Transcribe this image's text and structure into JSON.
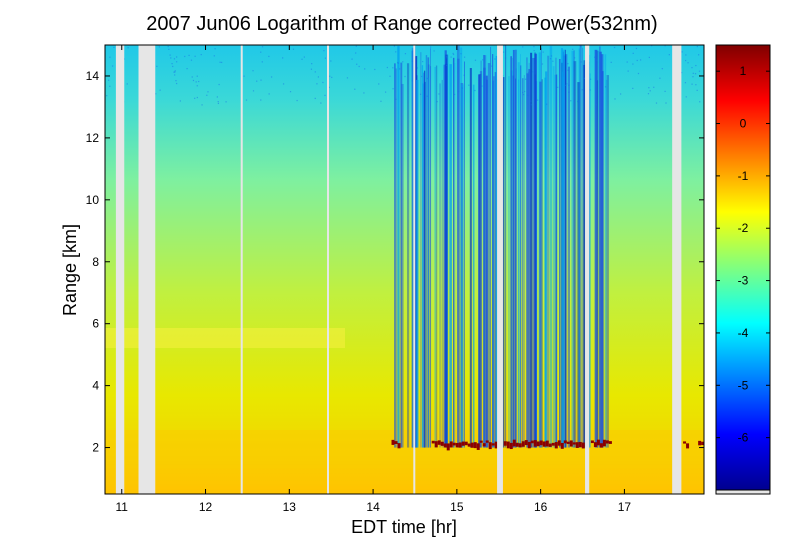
{
  "chart_data": {
    "type": "heatmap",
    "title": "2007 Jun06  Logarithm of Range corrected Power(532nm)",
    "xlabel": "EDT time [hr]",
    "ylabel": "Range [km]",
    "xlim": [
      10.8,
      17.95
    ],
    "ylim": [
      0.5,
      15
    ],
    "xticks": [
      "11",
      "12",
      "13",
      "14",
      "15",
      "16",
      "17"
    ],
    "yticks": [
      "2",
      "4",
      "6",
      "8",
      "10",
      "12",
      "14"
    ],
    "colorbar": {
      "colormap": "jet",
      "range": [
        -7,
        1.5
      ],
      "ticks": [
        "1",
        "0",
        "-1",
        "-2",
        "-3",
        "-4",
        "-5",
        "-6"
      ]
    },
    "data_gaps_hr": [
      [
        10.93,
        11.03
      ],
      [
        11.2,
        11.4
      ],
      [
        15.48,
        15.55
      ],
      [
        16.53,
        16.58
      ],
      [
        17.57,
        17.68
      ]
    ],
    "boundary_layer_top_km": 2.0,
    "aerosol_layer_km": 5.5,
    "colors": {
      "gap": "#e6e6e6",
      "frame": "#000000"
    }
  }
}
